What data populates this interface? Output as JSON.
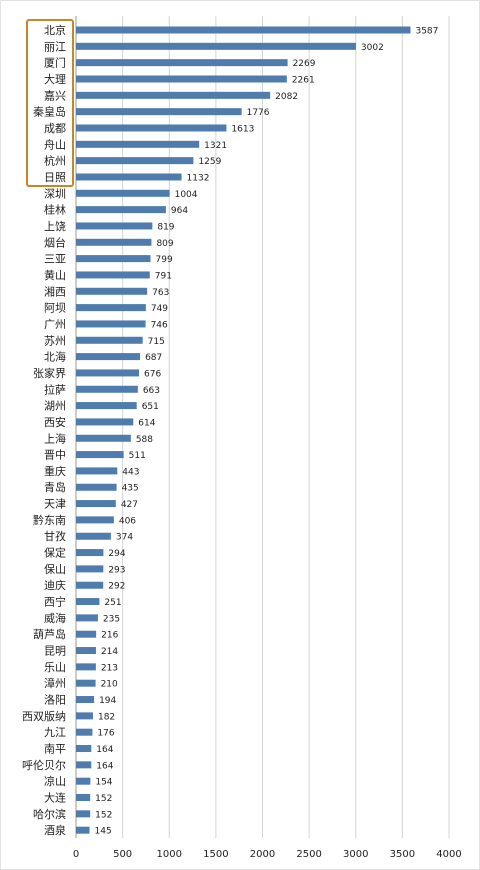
{
  "chart_data": {
    "type": "bar",
    "orientation": "horizontal",
    "categories": [
      "北京",
      "丽江",
      "厦门",
      "大理",
      "嘉兴",
      "秦皇岛",
      "成都",
      "舟山",
      "杭州",
      "日照",
      "深圳",
      "桂林",
      "上饶",
      "烟台",
      "三亚",
      "黄山",
      "湘西",
      "阿坝",
      "广州",
      "苏州",
      "北海",
      "张家界",
      "拉萨",
      "湖州",
      "西安",
      "上海",
      "晋中",
      "重庆",
      "青岛",
      "天津",
      "黔东南",
      "甘孜",
      "保定",
      "保山",
      "迪庆",
      "西宁",
      "威海",
      "葫芦岛",
      "昆明",
      "乐山",
      "漳州",
      "洛阳",
      "西双版纳",
      "九江",
      "南平",
      "呼伦贝尔",
      "凉山",
      "大连",
      "哈尔滨",
      "酒泉"
    ],
    "values": [
      3587,
      3002,
      2269,
      2261,
      2082,
      1776,
      1613,
      1321,
      1259,
      1132,
      1004,
      964,
      819,
      809,
      799,
      791,
      763,
      749,
      746,
      715,
      687,
      676,
      663,
      651,
      614,
      588,
      511,
      443,
      435,
      427,
      406,
      374,
      294,
      293,
      292,
      251,
      235,
      216,
      214,
      213,
      210,
      194,
      182,
      176,
      164,
      164,
      154,
      152,
      152,
      145
    ],
    "x_ticks": [
      "0",
      "500",
      "1000",
      "1500",
      "2000",
      "2500",
      "3000",
      "3500",
      "4000"
    ],
    "xlim": [
      0,
      4000
    ],
    "grid": "vertical",
    "bar_color": "#4f7cac",
    "highlight_color": "#c8862a",
    "highlighted_categories": [
      "北京",
      "丽江",
      "厦门",
      "大理",
      "嘉兴",
      "秦皇岛",
      "成都",
      "舟山",
      "杭州",
      "日照"
    ]
  }
}
